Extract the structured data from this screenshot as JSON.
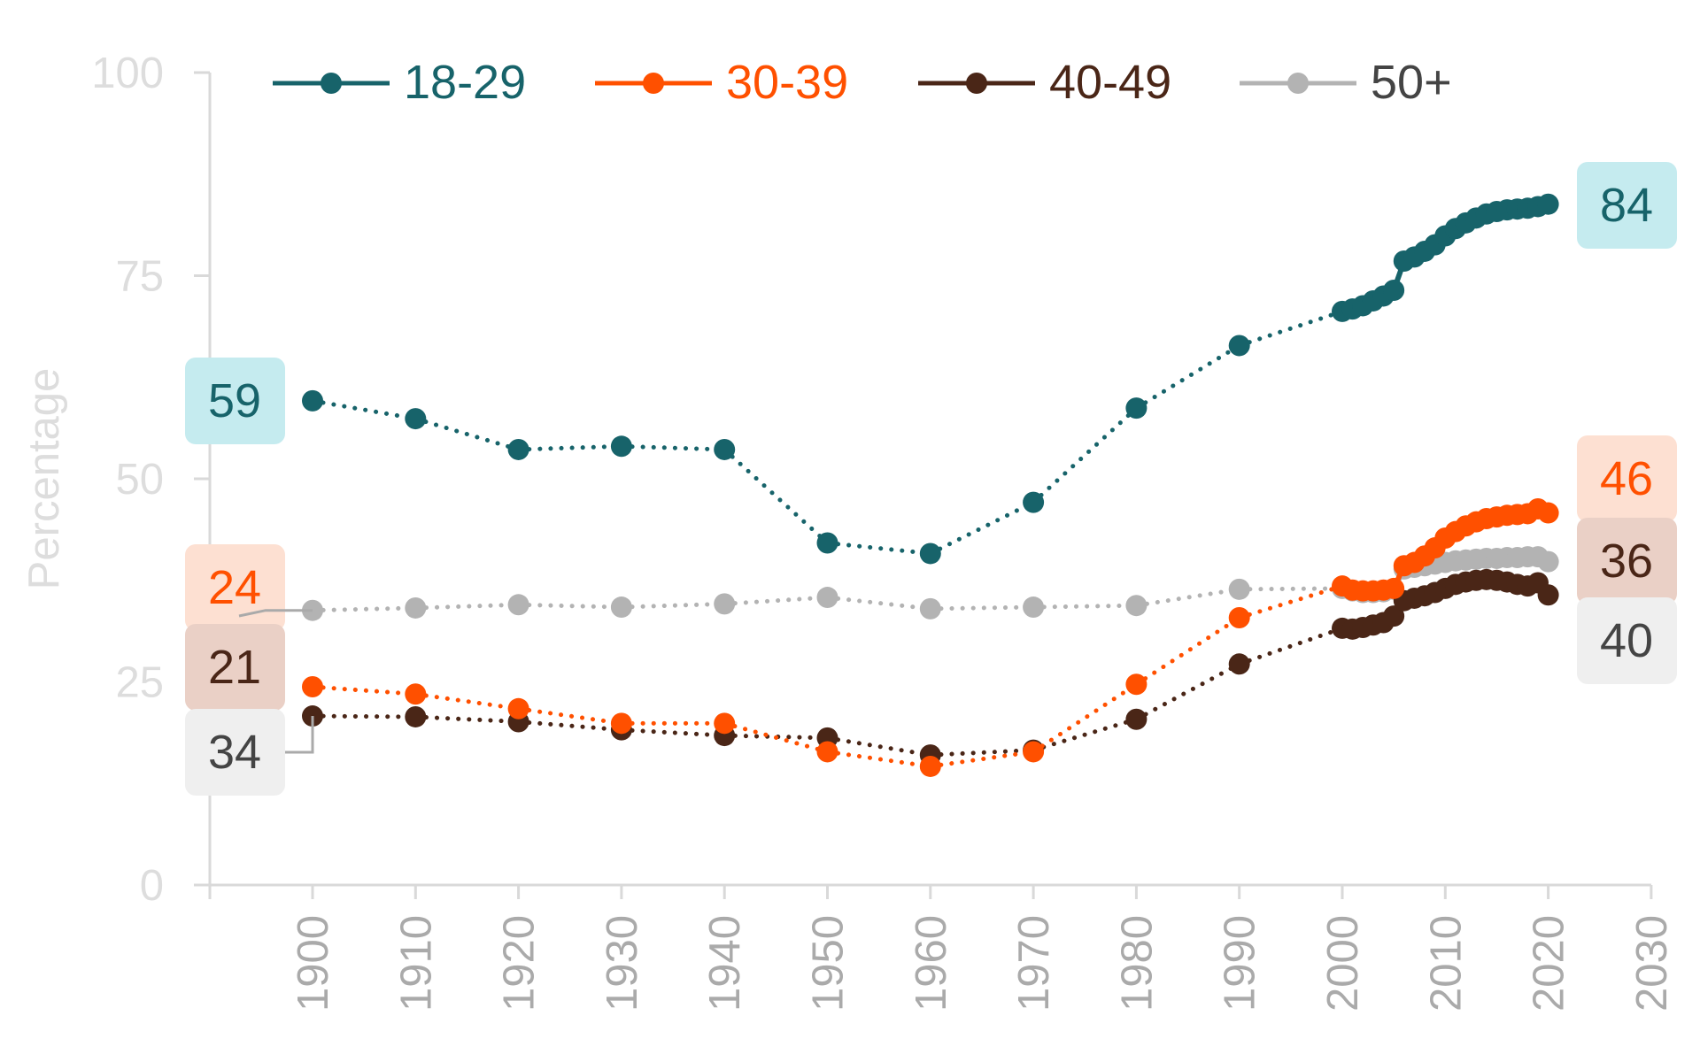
{
  "chart_data": {
    "type": "line",
    "title": "",
    "xlabel": "",
    "ylabel": "Percentage",
    "xlim": [
      1890,
      2030
    ],
    "ylim": [
      0,
      100
    ],
    "x_ticks": [
      1900,
      1910,
      1920,
      1930,
      1940,
      1950,
      1960,
      1970,
      1980,
      1990,
      2000,
      2010,
      2020,
      2030
    ],
    "y_ticks": [
      0,
      25,
      50,
      75,
      100
    ],
    "grid": false,
    "legend": "top",
    "x": [
      1900,
      1910,
      1920,
      1930,
      1940,
      1950,
      1960,
      1970,
      1980,
      1990,
      2000,
      2001,
      2002,
      2003,
      2004,
      2005,
      2006,
      2007,
      2008,
      2009,
      2010,
      2011,
      2012,
      2013,
      2014,
      2015,
      2016,
      2017,
      2018,
      2019,
      2020
    ],
    "series": [
      {
        "name": "18-29",
        "color": "#17636a",
        "label_bg": "#c5ebef",
        "start_label": "59",
        "end_label": "84",
        "values": [
          59.6,
          57.4,
          53.6,
          54.0,
          53.6,
          42.1,
          40.8,
          47.1,
          58.7,
          66.4,
          70.6,
          70.9,
          71.3,
          71.9,
          72.5,
          73.2,
          76.8,
          77.3,
          78.0,
          78.8,
          79.9,
          80.8,
          81.5,
          82.1,
          82.6,
          82.9,
          83.1,
          83.2,
          83.3,
          83.5,
          83.8
        ]
      },
      {
        "name": "30-39",
        "color": "#ff5000",
        "label_bg": "#fde0d2",
        "start_label": "24",
        "end_label": "46",
        "values": [
          24.4,
          23.5,
          21.7,
          19.9,
          19.9,
          16.4,
          14.6,
          16.4,
          24.7,
          32.9,
          36.8,
          36.3,
          36.2,
          36.2,
          36.3,
          36.5,
          39.3,
          39.7,
          40.5,
          41.5,
          42.7,
          43.5,
          44.2,
          44.7,
          45.1,
          45.3,
          45.5,
          45.6,
          45.7,
          46.3,
          45.8
        ]
      },
      {
        "name": "40-49",
        "color": "#4a2617",
        "label_bg": "#ead0c6",
        "start_label": "21",
        "end_label": "36",
        "values": [
          20.8,
          20.7,
          20.1,
          19.1,
          18.4,
          18.1,
          16.0,
          16.6,
          20.4,
          27.2,
          31.6,
          31.5,
          31.7,
          32.0,
          32.3,
          33.1,
          35.0,
          35.3,
          35.6,
          36.0,
          36.5,
          37.0,
          37.3,
          37.5,
          37.6,
          37.5,
          37.3,
          37.0,
          36.8,
          37.2,
          35.7
        ]
      },
      {
        "name": "50+",
        "color": "#b3b3b3",
        "label_bg": "#efefef",
        "label_text": "#444444",
        "start_label": "34",
        "end_label": "40",
        "values": [
          33.8,
          34.1,
          34.5,
          34.2,
          34.6,
          35.4,
          34.0,
          34.2,
          34.4,
          36.4,
          36.5,
          36.2,
          36.0,
          36.0,
          36.1,
          36.4,
          38.9,
          39.1,
          39.3,
          39.5,
          39.7,
          39.9,
          40.0,
          40.1,
          40.2,
          40.2,
          40.3,
          40.3,
          40.4,
          40.4,
          39.8
        ]
      }
    ]
  }
}
